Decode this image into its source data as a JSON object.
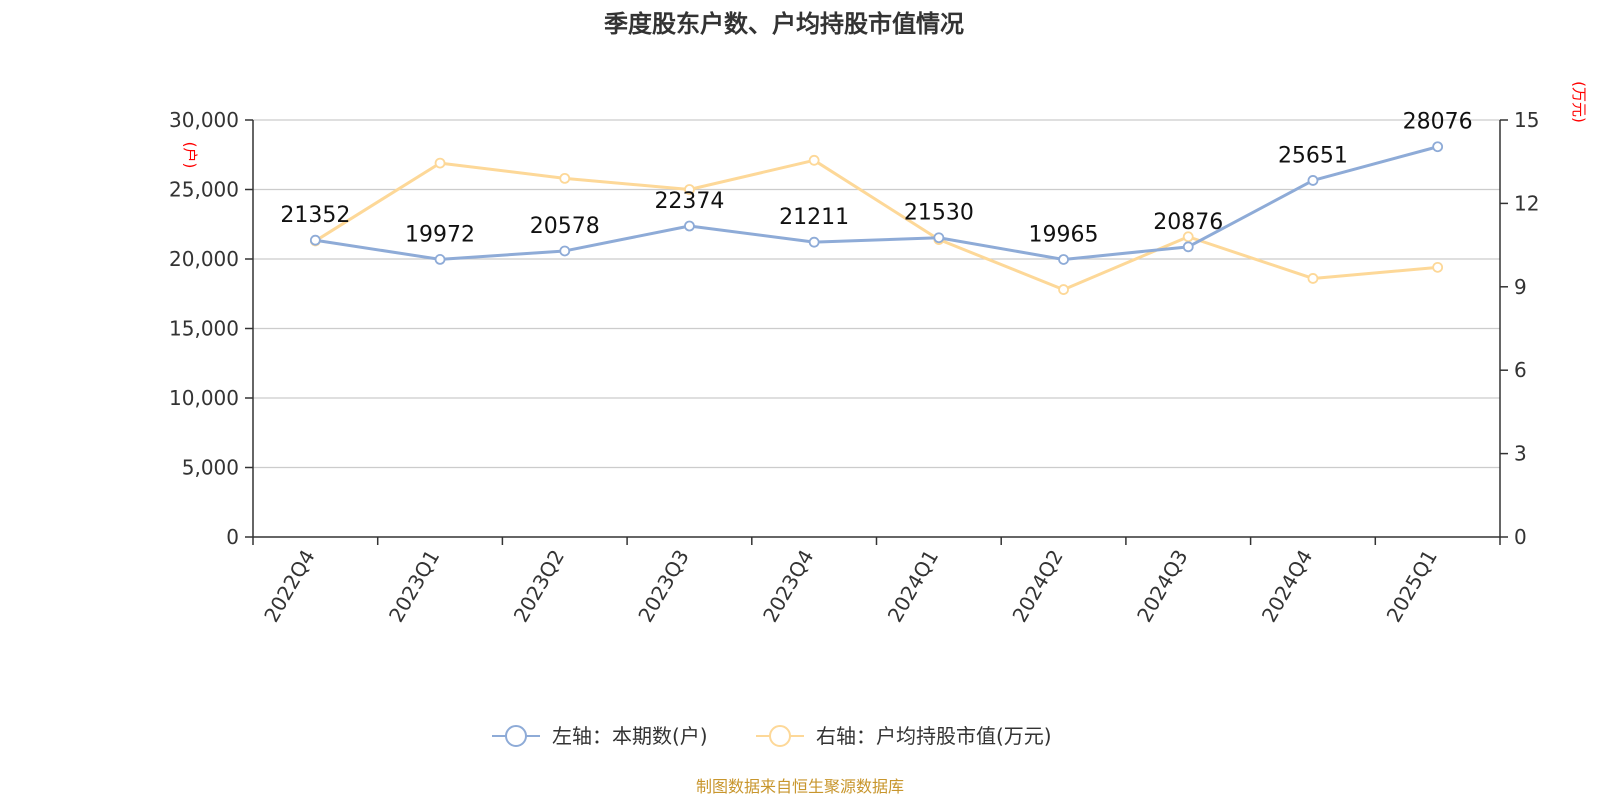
{
  "title": "季度股东户数、户均持股市值情况",
  "source": "制图数据来自恒生聚源数据库",
  "colors": {
    "left_series": "#8eabd7",
    "right_series": "#fdd898",
    "grid": "#cccccc",
    "axis": "#333333",
    "unit_label": "#ff0000",
    "source": "#c8962d"
  },
  "chart_data": {
    "type": "line",
    "title": "季度股东户数、户均持股市值情况",
    "categories": [
      "2022Q4",
      "2023Q1",
      "2023Q2",
      "2023Q3",
      "2023Q4",
      "2024Q1",
      "2024Q2",
      "2024Q3",
      "2024Q4",
      "2025Q1"
    ],
    "left_axis": {
      "unit": "(户)",
      "ylim": [
        0,
        30000
      ],
      "ticks": [
        0,
        5000,
        10000,
        15000,
        20000,
        25000,
        30000
      ],
      "tick_labels": [
        "0",
        "5,000",
        "10,000",
        "15,000",
        "20,000",
        "25,000",
        "30,000"
      ]
    },
    "right_axis": {
      "unit": "(万元)",
      "ylim": [
        0,
        15
      ],
      "ticks": [
        0,
        3,
        6,
        9,
        12,
        15
      ],
      "tick_labels": [
        "0",
        "3",
        "6",
        "9",
        "12",
        "15"
      ]
    },
    "series": [
      {
        "name": "左轴：本期数(户)",
        "axis": "left",
        "values": [
          21352,
          19972,
          20578,
          22374,
          21211,
          21530,
          19965,
          20876,
          25651,
          28076
        ],
        "data_labels": [
          "21352",
          "19972",
          "20578",
          "22374",
          "21211",
          "21530",
          "19965",
          "20876",
          "25651",
          "28076"
        ]
      },
      {
        "name": "右轴：户均持股市值(万元)",
        "axis": "right",
        "values": [
          10.65,
          13.45,
          12.9,
          12.5,
          13.55,
          10.7,
          8.9,
          10.8,
          9.3,
          9.7
        ]
      }
    ],
    "legend_position": "bottom-center",
    "grid": true
  }
}
